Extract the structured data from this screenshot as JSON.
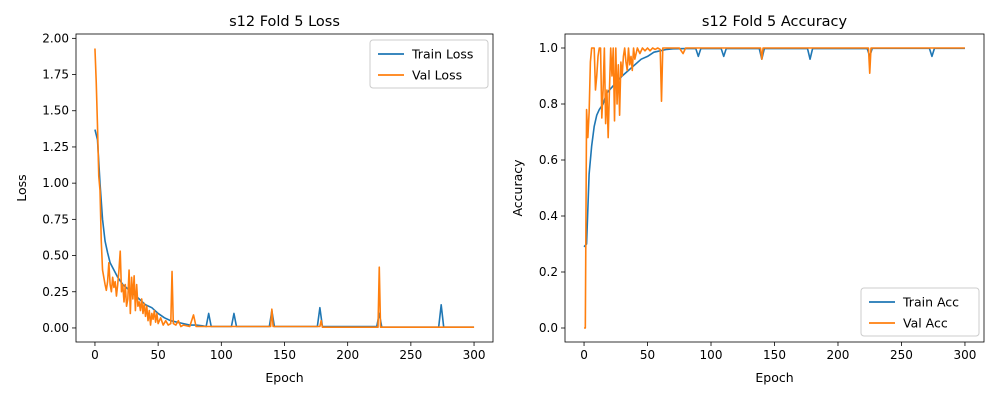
{
  "chart_data": [
    {
      "type": "line",
      "title": "s12 Fold 5 Loss",
      "xlabel": "Epoch",
      "ylabel": "Loss",
      "xlim": [
        -15,
        315
      ],
      "ylim": [
        -0.097,
        2.03
      ],
      "xticks": [
        0,
        50,
        100,
        150,
        200,
        250,
        300
      ],
      "xtick_labels": [
        "0",
        "50",
        "100",
        "150",
        "200",
        "250",
        "300"
      ],
      "yticks": [
        0.0,
        0.25,
        0.5,
        0.75,
        1.0,
        1.25,
        1.5,
        1.75,
        2.0
      ],
      "ytick_labels": [
        "0.00",
        "0.25",
        "0.50",
        "0.75",
        "1.00",
        "1.25",
        "1.50",
        "1.75",
        "2.00"
      ],
      "legend_position": "top-right",
      "series": [
        {
          "name": "Train Loss",
          "color": "#1f77b4",
          "points": [
            [
              0,
              1.37
            ],
            [
              2,
              1.3
            ],
            [
              4,
              1.0
            ],
            [
              6,
              0.75
            ],
            [
              8,
              0.6
            ],
            [
              10,
              0.52
            ],
            [
              12,
              0.45
            ],
            [
              15,
              0.4
            ],
            [
              18,
              0.35
            ],
            [
              22,
              0.3
            ],
            [
              26,
              0.27
            ],
            [
              30,
              0.24
            ],
            [
              35,
              0.2
            ],
            [
              40,
              0.16
            ],
            [
              45,
              0.14
            ],
            [
              50,
              0.1
            ],
            [
              55,
              0.07
            ],
            [
              60,
              0.05
            ],
            [
              65,
              0.04
            ],
            [
              70,
              0.03
            ],
            [
              75,
              0.02
            ],
            [
              80,
              0.02
            ],
            [
              85,
              0.015
            ],
            [
              88,
              0.01
            ],
            [
              90,
              0.1
            ],
            [
              92,
              0.01
            ],
            [
              100,
              0.01
            ],
            [
              108,
              0.01
            ],
            [
              110,
              0.1
            ],
            [
              112,
              0.01
            ],
            [
              138,
              0.01
            ],
            [
              140,
              0.12
            ],
            [
              142,
              0.01
            ],
            [
              176,
              0.01
            ],
            [
              178,
              0.14
            ],
            [
              180,
              0.01
            ],
            [
              223,
              0.01
            ],
            [
              225,
              0.1
            ],
            [
              227,
              0.005
            ],
            [
              272,
              0.005
            ],
            [
              274,
              0.16
            ],
            [
              276,
              0.005
            ],
            [
              300,
              0.005
            ]
          ]
        },
        {
          "name": "Val Loss",
          "color": "#ff7f0e",
          "points": [
            [
              0,
              1.93
            ],
            [
              1,
              1.7
            ],
            [
              2,
              1.4
            ],
            [
              3,
              1.05
            ],
            [
              4,
              0.95
            ],
            [
              5,
              0.6
            ],
            [
              6,
              0.4
            ],
            [
              7,
              0.35
            ],
            [
              8,
              0.3
            ],
            [
              9,
              0.26
            ],
            [
              10,
              0.32
            ],
            [
              11,
              0.45
            ],
            [
              12,
              0.3
            ],
            [
              13,
              0.25
            ],
            [
              14,
              0.35
            ],
            [
              15,
              0.28
            ],
            [
              16,
              0.32
            ],
            [
              17,
              0.22
            ],
            [
              18,
              0.3
            ],
            [
              19,
              0.4
            ],
            [
              20,
              0.53
            ],
            [
              21,
              0.25
            ],
            [
              22,
              0.3
            ],
            [
              23,
              0.18
            ],
            [
              24,
              0.3
            ],
            [
              25,
              0.15
            ],
            [
              26,
              0.2
            ],
            [
              27,
              0.4
            ],
            [
              28,
              0.1
            ],
            [
              29,
              0.35
            ],
            [
              30,
              0.2
            ],
            [
              31,
              0.36
            ],
            [
              32,
              0.12
            ],
            [
              33,
              0.3
            ],
            [
              34,
              0.15
            ],
            [
              35,
              0.18
            ],
            [
              36,
              0.12
            ],
            [
              37,
              0.2
            ],
            [
              38,
              0.1
            ],
            [
              39,
              0.17
            ],
            [
              40,
              0.08
            ],
            [
              41,
              0.15
            ],
            [
              42,
              0.05
            ],
            [
              43,
              0.12
            ],
            [
              44,
              0.02
            ],
            [
              45,
              0.1
            ],
            [
              46,
              0.06
            ],
            [
              47,
              0.12
            ],
            [
              48,
              0.04
            ],
            [
              49,
              0.1
            ],
            [
              50,
              0.03
            ],
            [
              52,
              0.07
            ],
            [
              54,
              0.02
            ],
            [
              56,
              0.05
            ],
            [
              58,
              0.02
            ],
            [
              60,
              0.03
            ],
            [
              61,
              0.39
            ],
            [
              62,
              0.03
            ],
            [
              64,
              0.02
            ],
            [
              66,
              0.05
            ],
            [
              68,
              0.01
            ],
            [
              70,
              0.02
            ],
            [
              75,
              0.01
            ],
            [
              78,
              0.09
            ],
            [
              80,
              0.01
            ],
            [
              90,
              0.01
            ],
            [
              100,
              0.01
            ],
            [
              110,
              0.01
            ],
            [
              139,
              0.01
            ],
            [
              140,
              0.13
            ],
            [
              141,
              0.01
            ],
            [
              178,
              0.01
            ],
            [
              179,
              0.05
            ],
            [
              180,
              0.005
            ],
            [
              224,
              0.005
            ],
            [
              225,
              0.42
            ],
            [
              226,
              0.005
            ],
            [
              300,
              0.005
            ]
          ]
        }
      ]
    },
    {
      "type": "line",
      "title": "s12 Fold 5 Accuracy",
      "xlabel": "Epoch",
      "ylabel": "Accuracy",
      "xlim": [
        -15,
        315
      ],
      "ylim": [
        -0.05,
        1.05
      ],
      "xticks": [
        0,
        50,
        100,
        150,
        200,
        250,
        300
      ],
      "xtick_labels": [
        "0",
        "50",
        "100",
        "150",
        "200",
        "250",
        "300"
      ],
      "yticks": [
        0.0,
        0.2,
        0.4,
        0.6,
        0.8,
        1.0
      ],
      "ytick_labels": [
        "0.0",
        "0.2",
        "0.4",
        "0.6",
        "0.8",
        "1.0"
      ],
      "legend_position": "bottom-right",
      "series": [
        {
          "name": "Train Acc",
          "color": "#1f77b4",
          "points": [
            [
              0,
              0.29
            ],
            [
              2,
              0.3
            ],
            [
              4,
              0.55
            ],
            [
              6,
              0.65
            ],
            [
              8,
              0.72
            ],
            [
              10,
              0.76
            ],
            [
              12,
              0.78
            ],
            [
              15,
              0.8
            ],
            [
              18,
              0.84
            ],
            [
              22,
              0.86
            ],
            [
              26,
              0.88
            ],
            [
              30,
              0.9
            ],
            [
              35,
              0.92
            ],
            [
              40,
              0.94
            ],
            [
              45,
              0.96
            ],
            [
              50,
              0.97
            ],
            [
              55,
              0.985
            ],
            [
              60,
              0.99
            ],
            [
              65,
              0.995
            ],
            [
              70,
              0.997
            ],
            [
              80,
              0.998
            ],
            [
              88,
              0.998
            ],
            [
              90,
              0.97
            ],
            [
              92,
              0.998
            ],
            [
              108,
              0.998
            ],
            [
              110,
              0.97
            ],
            [
              112,
              0.998
            ],
            [
              138,
              0.998
            ],
            [
              140,
              0.96
            ],
            [
              142,
              0.998
            ],
            [
              176,
              0.998
            ],
            [
              178,
              0.96
            ],
            [
              180,
              0.998
            ],
            [
              223,
              0.998
            ],
            [
              225,
              0.97
            ],
            [
              227,
              0.999
            ],
            [
              272,
              0.999
            ],
            [
              274,
              0.97
            ],
            [
              276,
              0.999
            ],
            [
              300,
              0.999
            ]
          ]
        },
        {
          "name": "Val Acc",
          "color": "#ff7f0e",
          "points": [
            [
              0,
              0.0
            ],
            [
              1,
              0.0
            ],
            [
              2,
              0.78
            ],
            [
              3,
              0.68
            ],
            [
              4,
              0.77
            ],
            [
              5,
              0.95
            ],
            [
              6,
              1.0
            ],
            [
              7,
              1.0
            ],
            [
              8,
              1.0
            ],
            [
              9,
              0.85
            ],
            [
              10,
              0.9
            ],
            [
              11,
              0.97
            ],
            [
              12,
              1.0
            ],
            [
              13,
              1.0
            ],
            [
              14,
              0.75
            ],
            [
              15,
              0.85
            ],
            [
              16,
              1.0
            ],
            [
              17,
              0.73
            ],
            [
              18,
              0.85
            ],
            [
              19,
              0.68
            ],
            [
              20,
              0.85
            ],
            [
              21,
              1.0
            ],
            [
              22,
              0.9
            ],
            [
              23,
              1.0
            ],
            [
              24,
              0.74
            ],
            [
              25,
              1.0
            ],
            [
              26,
              0.8
            ],
            [
              27,
              0.94
            ],
            [
              28,
              0.76
            ],
            [
              29,
              0.95
            ],
            [
              30,
              0.9
            ],
            [
              31,
              0.97
            ],
            [
              32,
              1.0
            ],
            [
              33,
              0.95
            ],
            [
              34,
              0.92
            ],
            [
              35,
              1.0
            ],
            [
              36,
              0.94
            ],
            [
              37,
              0.97
            ],
            [
              38,
              0.92
            ],
            [
              39,
              1.0
            ],
            [
              40,
              0.96
            ],
            [
              42,
              1.0
            ],
            [
              44,
              0.98
            ],
            [
              46,
              1.0
            ],
            [
              48,
              0.99
            ],
            [
              50,
              1.0
            ],
            [
              52,
              0.99
            ],
            [
              54,
              1.0
            ],
            [
              56,
              0.995
            ],
            [
              58,
              1.0
            ],
            [
              60,
              0.995
            ],
            [
              61,
              0.81
            ],
            [
              62,
              1.0
            ],
            [
              70,
              1.0
            ],
            [
              75,
              1.0
            ],
            [
              78,
              0.98
            ],
            [
              80,
              1.0
            ],
            [
              139,
              1.0
            ],
            [
              140,
              0.96
            ],
            [
              141,
              1.0
            ],
            [
              224,
              1.0
            ],
            [
              225,
              0.91
            ],
            [
              226,
              1.0
            ],
            [
              300,
              1.0
            ]
          ]
        }
      ]
    }
  ]
}
